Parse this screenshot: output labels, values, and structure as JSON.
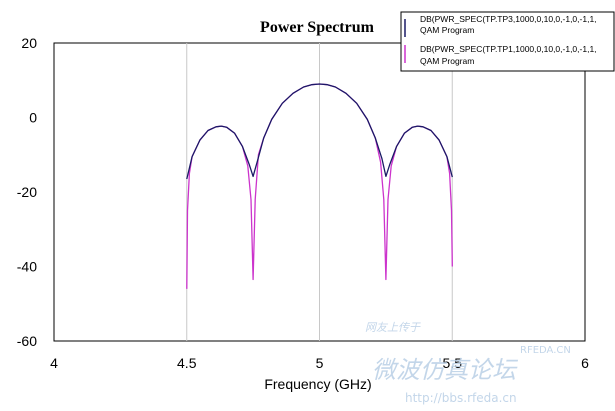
{
  "chart_data": {
    "type": "line",
    "title": "Power Spectrum",
    "xlabel": "Frequency (GHz)",
    "ylabel": "",
    "xlim": [
      4,
      6
    ],
    "ylim": [
      -60,
      20
    ],
    "xticks": [
      4,
      4.5,
      5,
      5.5,
      6
    ],
    "yticks": [
      20,
      0,
      -20,
      -40,
      -60
    ],
    "xtick_labels": [
      "4",
      "4.5",
      "5",
      "5.5",
      "6"
    ],
    "ytick_labels": [
      "20",
      "0",
      "-20",
      "-40",
      "-60"
    ],
    "grid": "vertical",
    "legend_position": "top-right",
    "series": [
      {
        "name": "DB(PWR_SPEC(TP.TP3,1000,0,10,0,-1,0,-1,1,",
        "name_line2": "QAM Program",
        "color": "#1a1a66",
        "x": [
          4.5,
          4.52,
          4.55,
          4.58,
          4.61,
          4.63,
          4.65,
          4.68,
          4.71,
          4.735,
          4.75,
          4.765,
          4.79,
          4.82,
          4.86,
          4.9,
          4.94,
          4.97,
          5.0,
          5.03,
          5.06,
          5.1,
          5.14,
          5.18,
          5.21,
          5.235,
          5.25,
          5.265,
          5.29,
          5.32,
          5.35,
          5.37,
          5.39,
          5.42,
          5.45,
          5.48,
          5.5
        ],
        "y": [
          -16.5,
          -10.5,
          -6,
          -3.5,
          -2.5,
          -2.3,
          -2.6,
          -4.2,
          -7.8,
          -12.5,
          -15.8,
          -12,
          -5.5,
          -0.5,
          3.8,
          6.5,
          8.2,
          8.8,
          9.0,
          8.8,
          8.2,
          6.5,
          3.8,
          -0.5,
          -5.5,
          -11,
          -15.8,
          -12.5,
          -7.8,
          -4.2,
          -2.6,
          -2.3,
          -2.5,
          -3.5,
          -6,
          -10.5,
          -16
        ]
      },
      {
        "name": "DB(PWR_SPEC(TP.TP1,1000,0,10,0,-1,0,-1,1,",
        "name_line2": "QAM Program",
        "color": "#cc33cc",
        "x": [
          4.5,
          4.503,
          4.51,
          4.52,
          4.55,
          4.58,
          4.61,
          4.63,
          4.65,
          4.68,
          4.71,
          4.73,
          4.742,
          4.75,
          4.758,
          4.77,
          4.79,
          4.82,
          4.86,
          4.9,
          4.94,
          4.97,
          5.0,
          5.03,
          5.06,
          5.1,
          5.14,
          5.18,
          5.21,
          5.23,
          5.242,
          5.25,
          5.258,
          5.27,
          5.29,
          5.32,
          5.35,
          5.37,
          5.39,
          5.42,
          5.45,
          5.48,
          5.49,
          5.497,
          5.5
        ],
        "y": [
          -46,
          -25,
          -15,
          -10.5,
          -6,
          -3.5,
          -2.5,
          -2.3,
          -2.6,
          -4.2,
          -7.8,
          -13,
          -22,
          -43.5,
          -22,
          -10,
          -5.5,
          -0.5,
          3.8,
          6.5,
          8.2,
          8.8,
          9.0,
          8.8,
          8.2,
          6.5,
          3.8,
          -0.5,
          -5.5,
          -12,
          -22,
          -43.5,
          -22,
          -13,
          -7.8,
          -4.2,
          -2.6,
          -2.3,
          -2.5,
          -3.5,
          -6,
          -10.5,
          -15,
          -25,
          -40
        ]
      }
    ]
  },
  "watermark": {
    "site": "RFEDA.CN",
    "slogan": "网友上传于",
    "forum": "微波仿真论坛",
    "url": "http://bbs.rfeda.cn"
  }
}
